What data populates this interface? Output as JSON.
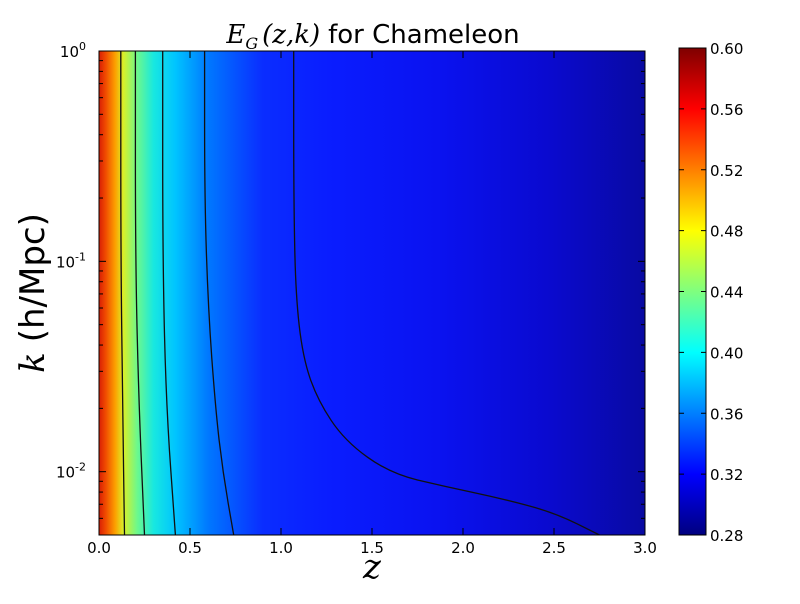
{
  "chart_data": {
    "type": "heatmap",
    "title_math": "E",
    "title_math_sub": "G",
    "title_math_args": "(z,k)",
    "title_text": "for Chameleon",
    "xlabel": "z",
    "ylabel_math": "k",
    "ylabel_text": "(h/Mpc)",
    "xlim": [
      0.0,
      3.0
    ],
    "ylim": [
      0.005,
      1.0
    ],
    "yscale": "log",
    "x_ticks": [
      {
        "value": 0.0,
        "label": "0.0"
      },
      {
        "value": 0.5,
        "label": "0.5"
      },
      {
        "value": 1.0,
        "label": "1.0"
      },
      {
        "value": 1.5,
        "label": "1.5"
      },
      {
        "value": 2.0,
        "label": "2.0"
      },
      {
        "value": 2.5,
        "label": "2.5"
      },
      {
        "value": 3.0,
        "label": "3.0"
      }
    ],
    "y_ticks": [
      {
        "value": 0.01,
        "base": "10",
        "exp": "-2"
      },
      {
        "value": 0.1,
        "base": "10",
        "exp": "-1"
      },
      {
        "value": 1.0,
        "base": "10",
        "exp": "0"
      }
    ],
    "colorbar": {
      "min": 0.28,
      "max": 0.6,
      "colormap": "jet",
      "ticks": [
        "0.28",
        "0.32",
        "0.36",
        "0.40",
        "0.44",
        "0.48",
        "0.52",
        "0.56",
        "0.60"
      ]
    },
    "contours": [
      {
        "points": [
          [
            0.12,
            1.0
          ],
          [
            0.12,
            0.1
          ],
          [
            0.13,
            0.02
          ],
          [
            0.14,
            0.005
          ]
        ]
      },
      {
        "points": [
          [
            0.2,
            1.0
          ],
          [
            0.2,
            0.1
          ],
          [
            0.22,
            0.02
          ],
          [
            0.25,
            0.005
          ]
        ]
      },
      {
        "points": [
          [
            0.35,
            1.0
          ],
          [
            0.35,
            0.1
          ],
          [
            0.37,
            0.02
          ],
          [
            0.42,
            0.005
          ]
        ]
      },
      {
        "points": [
          [
            0.58,
            1.0
          ],
          [
            0.58,
            0.2
          ],
          [
            0.6,
            0.06
          ],
          [
            0.64,
            0.02
          ],
          [
            0.68,
            0.01
          ],
          [
            0.74,
            0.005
          ]
        ]
      },
      {
        "points": [
          [
            1.07,
            1.0
          ],
          [
            1.07,
            0.2
          ],
          [
            1.08,
            0.07
          ],
          [
            1.12,
            0.035
          ],
          [
            1.2,
            0.022
          ],
          [
            1.35,
            0.014
          ],
          [
            1.6,
            0.0098
          ],
          [
            1.9,
            0.0085
          ],
          [
            2.2,
            0.0075
          ],
          [
            2.5,
            0.0064
          ],
          [
            2.75,
            0.005
          ]
        ]
      }
    ]
  }
}
